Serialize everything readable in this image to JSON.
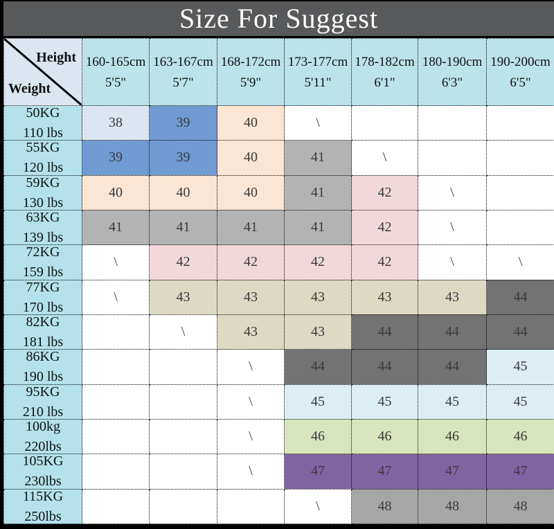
{
  "title": "Size For Suggest",
  "corner": {
    "top_label": "Height",
    "bottom_label": "Weight"
  },
  "colors": {
    "title_bg": "#58595b",
    "title_text": "#ffffff",
    "header_bg": "#bce2ec",
    "corner_bg": "#dce6f1",
    "weight_col_bg": "#b4e1ec",
    "cell_text": "#3a3a3a",
    "border": "#000000"
  },
  "chart_data": {
    "type": "table",
    "title": "Size For Suggest",
    "corner_top_right": "Height",
    "corner_bottom_left": "Weight",
    "columns": [
      {
        "cm": "160-165cm",
        "ft": "5'5\""
      },
      {
        "cm": "163-167cm",
        "ft": "5'7\""
      },
      {
        "cm": "168-172cm",
        "ft": "5'9\""
      },
      {
        "cm": "173-177cm",
        "ft": "5'11\""
      },
      {
        "cm": "178-182cm",
        "ft": "6'1\""
      },
      {
        "cm": "180-190cm",
        "ft": "6'3\""
      },
      {
        "cm": "190-200cm",
        "ft": "6'5\""
      }
    ],
    "rows": [
      {
        "kg": "50KG",
        "lbs": "110 lbs",
        "cells": [
          "38",
          "39",
          "40",
          "\\",
          "",
          "",
          ""
        ]
      },
      {
        "kg": "55KG",
        "lbs": "120 lbs",
        "cells": [
          "39",
          "39",
          "40",
          "41",
          "\\",
          "",
          ""
        ]
      },
      {
        "kg": "59KG",
        "lbs": "130 lbs",
        "cells": [
          "40",
          "40",
          "40",
          "41",
          "42",
          "\\",
          ""
        ]
      },
      {
        "kg": "63KG",
        "lbs": "139 lbs",
        "cells": [
          "41",
          "41",
          "41",
          "41",
          "42",
          "\\",
          ""
        ]
      },
      {
        "kg": "72KG",
        "lbs": "159 lbs",
        "cells": [
          "\\",
          "42",
          "42",
          "42",
          "42",
          "\\",
          "\\"
        ]
      },
      {
        "kg": "77KG",
        "lbs": "170 lbs",
        "cells": [
          "\\",
          "43",
          "43",
          "43",
          "43",
          "43",
          "44"
        ]
      },
      {
        "kg": "82KG",
        "lbs": "181 lbs",
        "cells": [
          "",
          "\\",
          "43",
          "43",
          "44",
          "44",
          "44"
        ]
      },
      {
        "kg": "86KG",
        "lbs": "190 lbs",
        "cells": [
          "",
          "",
          "\\",
          "44",
          "44",
          "44",
          "45"
        ]
      },
      {
        "kg": "95KG",
        "lbs": "210 lbs",
        "cells": [
          "",
          "",
          "\\",
          "45",
          "45",
          "45",
          "45"
        ]
      },
      {
        "kg": "100kg",
        "lbs": "220lbs",
        "cells": [
          "",
          "",
          "\\",
          "46",
          "46",
          "46",
          "46"
        ]
      },
      {
        "kg": "105KG",
        "lbs": "230lbs",
        "cells": [
          "",
          "",
          "\\",
          "47",
          "47",
          "47",
          "47"
        ]
      },
      {
        "kg": "115KG",
        "lbs": "250lbs",
        "cells": [
          "",
          "",
          "",
          "\\",
          "48",
          "48",
          "48"
        ]
      }
    ],
    "color_by_value": {
      "38": "#dce6f1",
      "39": "#6f9bd2",
      "40": "#fbe5d4",
      "41": "#b3b3b3",
      "42": "#f2d8da",
      "43": "#ddd9c3",
      "44": "#737373",
      "45": "#daeef3",
      "46": "#d7e4bd",
      "47": "#8064a2",
      "48": "#a6a6a6",
      "\\": "#ffffff",
      "": "#ffffff"
    }
  }
}
